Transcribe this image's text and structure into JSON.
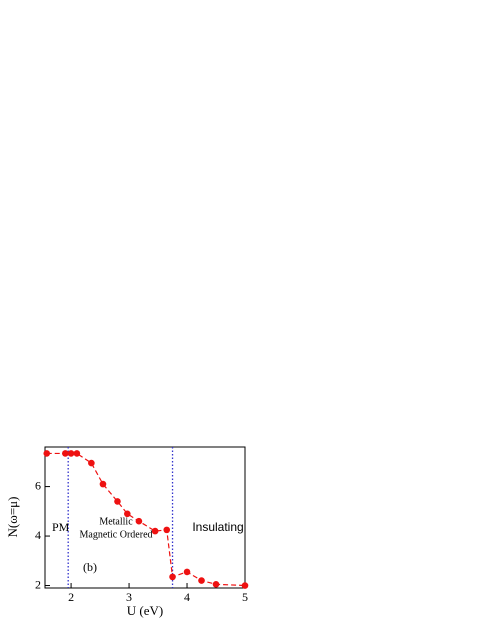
{
  "chart_data": {
    "type": "line",
    "x_label": "U (eV)",
    "y_label": "N(ω=μ)",
    "x": [
      1.58,
      1.9,
      2.0,
      2.1,
      2.35,
      2.55,
      2.8,
      2.97,
      3.17,
      3.45,
      3.65,
      3.75,
      4.0,
      4.25,
      4.5,
      5.0
    ],
    "series": [
      {
        "color": "#ee1111",
        "values": [
          7.34,
          7.34,
          7.34,
          7.34,
          6.95,
          6.1,
          5.4,
          4.9,
          4.6,
          4.2,
          4.25,
          2.35,
          2.55,
          2.2,
          2.05,
          2.0
        ]
      }
    ],
    "xlim": [
      1.55,
      5.0
    ],
    "ylim": [
      1.9,
      7.6
    ],
    "xticks": [
      2,
      3,
      4,
      5
    ],
    "yticks": [
      2,
      4,
      6
    ],
    "vlines": [
      1.95,
      3.75
    ],
    "vline_color": "#3333cc",
    "annotations": [
      "PM",
      "Metallic",
      "Magnetic Ordered",
      "Insulating",
      "(b)"
    ]
  }
}
